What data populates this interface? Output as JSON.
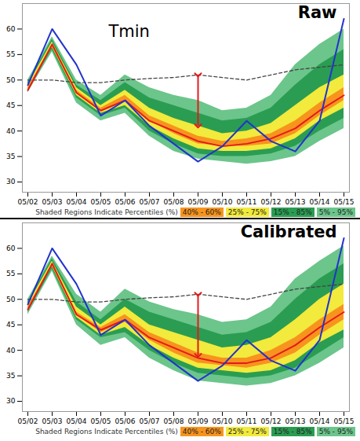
{
  "chart_data": [
    {
      "type": "area",
      "title": "Raw",
      "annotations": [
        "Tmin"
      ],
      "x": [
        "05/02",
        "05/03",
        "05/04",
        "05/05",
        "05/06",
        "05/07",
        "05/08",
        "05/09",
        "05/10",
        "05/11",
        "05/12",
        "05/13",
        "05/14",
        "05/15"
      ],
      "ylim": [
        28,
        65
      ],
      "yticks": [
        30,
        35,
        40,
        45,
        50,
        55,
        60
      ],
      "grid": false,
      "legend_title": "Shaded Regions Indicate Percentiles (%)",
      "bands": [
        {
          "name": "40% - 60%",
          "color": "#f7941d",
          "lower": [
            48,
            56.5,
            47.5,
            44,
            46,
            42,
            39.5,
            37.5,
            37,
            37,
            37.5,
            39.5,
            43,
            46
          ],
          "upper": [
            48.5,
            57,
            48,
            44.5,
            47,
            43,
            41,
            39,
            38,
            38.5,
            39.5,
            42,
            45.5,
            48.5
          ]
        },
        {
          "name": "25% - 75%",
          "color": "#f2ea3c",
          "lower": [
            48,
            56.5,
            47,
            43.5,
            45,
            41,
            38.5,
            36.5,
            36,
            36,
            36.5,
            38.5,
            42,
            44.5
          ],
          "upper": [
            49,
            57.5,
            48.5,
            45,
            48,
            44.5,
            42.5,
            41,
            39.5,
            40,
            41.5,
            45,
            48.5,
            51
          ]
        },
        {
          "name": "15% - 85%",
          "color": "#2a9d52",
          "lower": [
            48,
            56,
            46.5,
            43,
            44.5,
            40,
            37.5,
            35.5,
            35,
            35,
            35.5,
            37,
            40,
            42.5
          ],
          "upper": [
            49.5,
            58,
            49,
            46,
            49.5,
            46.5,
            45,
            43.5,
            42,
            42.5,
            44.5,
            49,
            53,
            56
          ]
        },
        {
          "name": "5% - 95%",
          "color": "#6cc58b",
          "lower": [
            47.5,
            55.5,
            45.5,
            42,
            43.5,
            39,
            36,
            34.5,
            34,
            33.5,
            34,
            35,
            38,
            40.5
          ],
          "upper": [
            50,
            58.5,
            50,
            47,
            51,
            48.5,
            47,
            46,
            44,
            44.5,
            47,
            53,
            57,
            60
          ]
        }
      ],
      "series": [
        {
          "color": "#444444",
          "line_style": "dashed",
          "values": [
            50,
            50,
            49.5,
            49.5,
            50,
            50.3,
            50.5,
            51,
            50.5,
            50,
            51,
            52,
            52.5,
            53
          ]
        },
        {
          "color": "#e31a1c",
          "line_style": "solid",
          "values": [
            48,
            57,
            47.5,
            44,
            46,
            42,
            40,
            38,
            37,
            37.5,
            38.5,
            40.5,
            44,
            47
          ]
        },
        {
          "color": "#2233cc",
          "line_style": "solid",
          "values": [
            49,
            60,
            53,
            43,
            46,
            41,
            37.5,
            34,
            37,
            42,
            38,
            36,
            42,
            62
          ]
        }
      ],
      "arrow": {
        "x": "05/09",
        "from": 51,
        "to": 41,
        "color": "#e31a1c"
      }
    },
    {
      "type": "area",
      "title": "Calibrated",
      "annotations": [],
      "x": [
        "05/02",
        "05/03",
        "05/04",
        "05/05",
        "05/06",
        "05/07",
        "05/08",
        "05/09",
        "05/10",
        "05/11",
        "05/12",
        "05/13",
        "05/14",
        "05/15"
      ],
      "ylim": [
        28,
        65
      ],
      "yticks": [
        30,
        35,
        40,
        45,
        50,
        55,
        60
      ],
      "grid": false,
      "legend_title": "Shaded Regions Indicate Percentiles (%)",
      "bands": [
        {
          "name": "40% - 60%",
          "color": "#f7941d",
          "lower": [
            48,
            56.5,
            47,
            43.5,
            45.5,
            42,
            39.5,
            37.5,
            37,
            36.5,
            37.5,
            39.5,
            43,
            46
          ],
          "upper": [
            48.5,
            57,
            47.5,
            44.5,
            47,
            43.5,
            41.5,
            39.5,
            38.5,
            38.5,
            40,
            42.5,
            46,
            49
          ]
        },
        {
          "name": "25% - 75%",
          "color": "#f2ea3c",
          "lower": [
            48,
            56.5,
            46.5,
            43,
            44.5,
            41,
            38.5,
            36.5,
            36,
            35.5,
            36,
            38,
            41.5,
            44
          ],
          "upper": [
            49,
            57.5,
            48.5,
            45,
            48.5,
            45,
            43.5,
            42,
            40.5,
            41,
            42.5,
            46,
            50,
            53
          ]
        },
        {
          "name": "15% - 85%",
          "color": "#2a9d52",
          "lower": [
            47.5,
            56,
            46,
            42.5,
            43.5,
            40,
            37.5,
            35.5,
            35,
            34.5,
            35,
            36.5,
            39.5,
            42.5
          ],
          "upper": [
            49.5,
            58,
            49.5,
            46,
            50,
            47.5,
            46,
            44.5,
            43,
            43.5,
            45.5,
            50,
            54,
            57
          ]
        },
        {
          "name": "5% - 95%",
          "color": "#6cc58b",
          "lower": [
            47,
            55.5,
            45,
            41,
            42.5,
            38.5,
            36,
            34,
            33.5,
            33,
            33.5,
            35,
            37.5,
            40.5
          ],
          "upper": [
            50,
            58.5,
            51,
            47.5,
            52,
            49.5,
            48,
            47,
            45.5,
            46,
            48.5,
            54,
            57.5,
            60.5
          ]
        }
      ],
      "series": [
        {
          "color": "#444444",
          "line_style": "dashed",
          "values": [
            50,
            50,
            49.5,
            49.5,
            50,
            50.3,
            50.5,
            51,
            50.5,
            50,
            51,
            52,
            52.5,
            53
          ]
        },
        {
          "color": "#e31a1c",
          "line_style": "solid",
          "values": [
            48,
            57,
            47,
            44,
            46,
            42.5,
            40.5,
            38.5,
            37.5,
            37.5,
            38.5,
            41,
            44.5,
            47.5
          ]
        },
        {
          "color": "#2233cc",
          "line_style": "solid",
          "values": [
            49,
            60,
            53,
            43,
            46,
            41,
            37.5,
            34,
            37,
            42,
            38,
            36,
            42,
            62
          ]
        }
      ],
      "arrow": {
        "x": "05/09",
        "from": 51,
        "to": 39,
        "color": "#e31a1c"
      }
    }
  ]
}
